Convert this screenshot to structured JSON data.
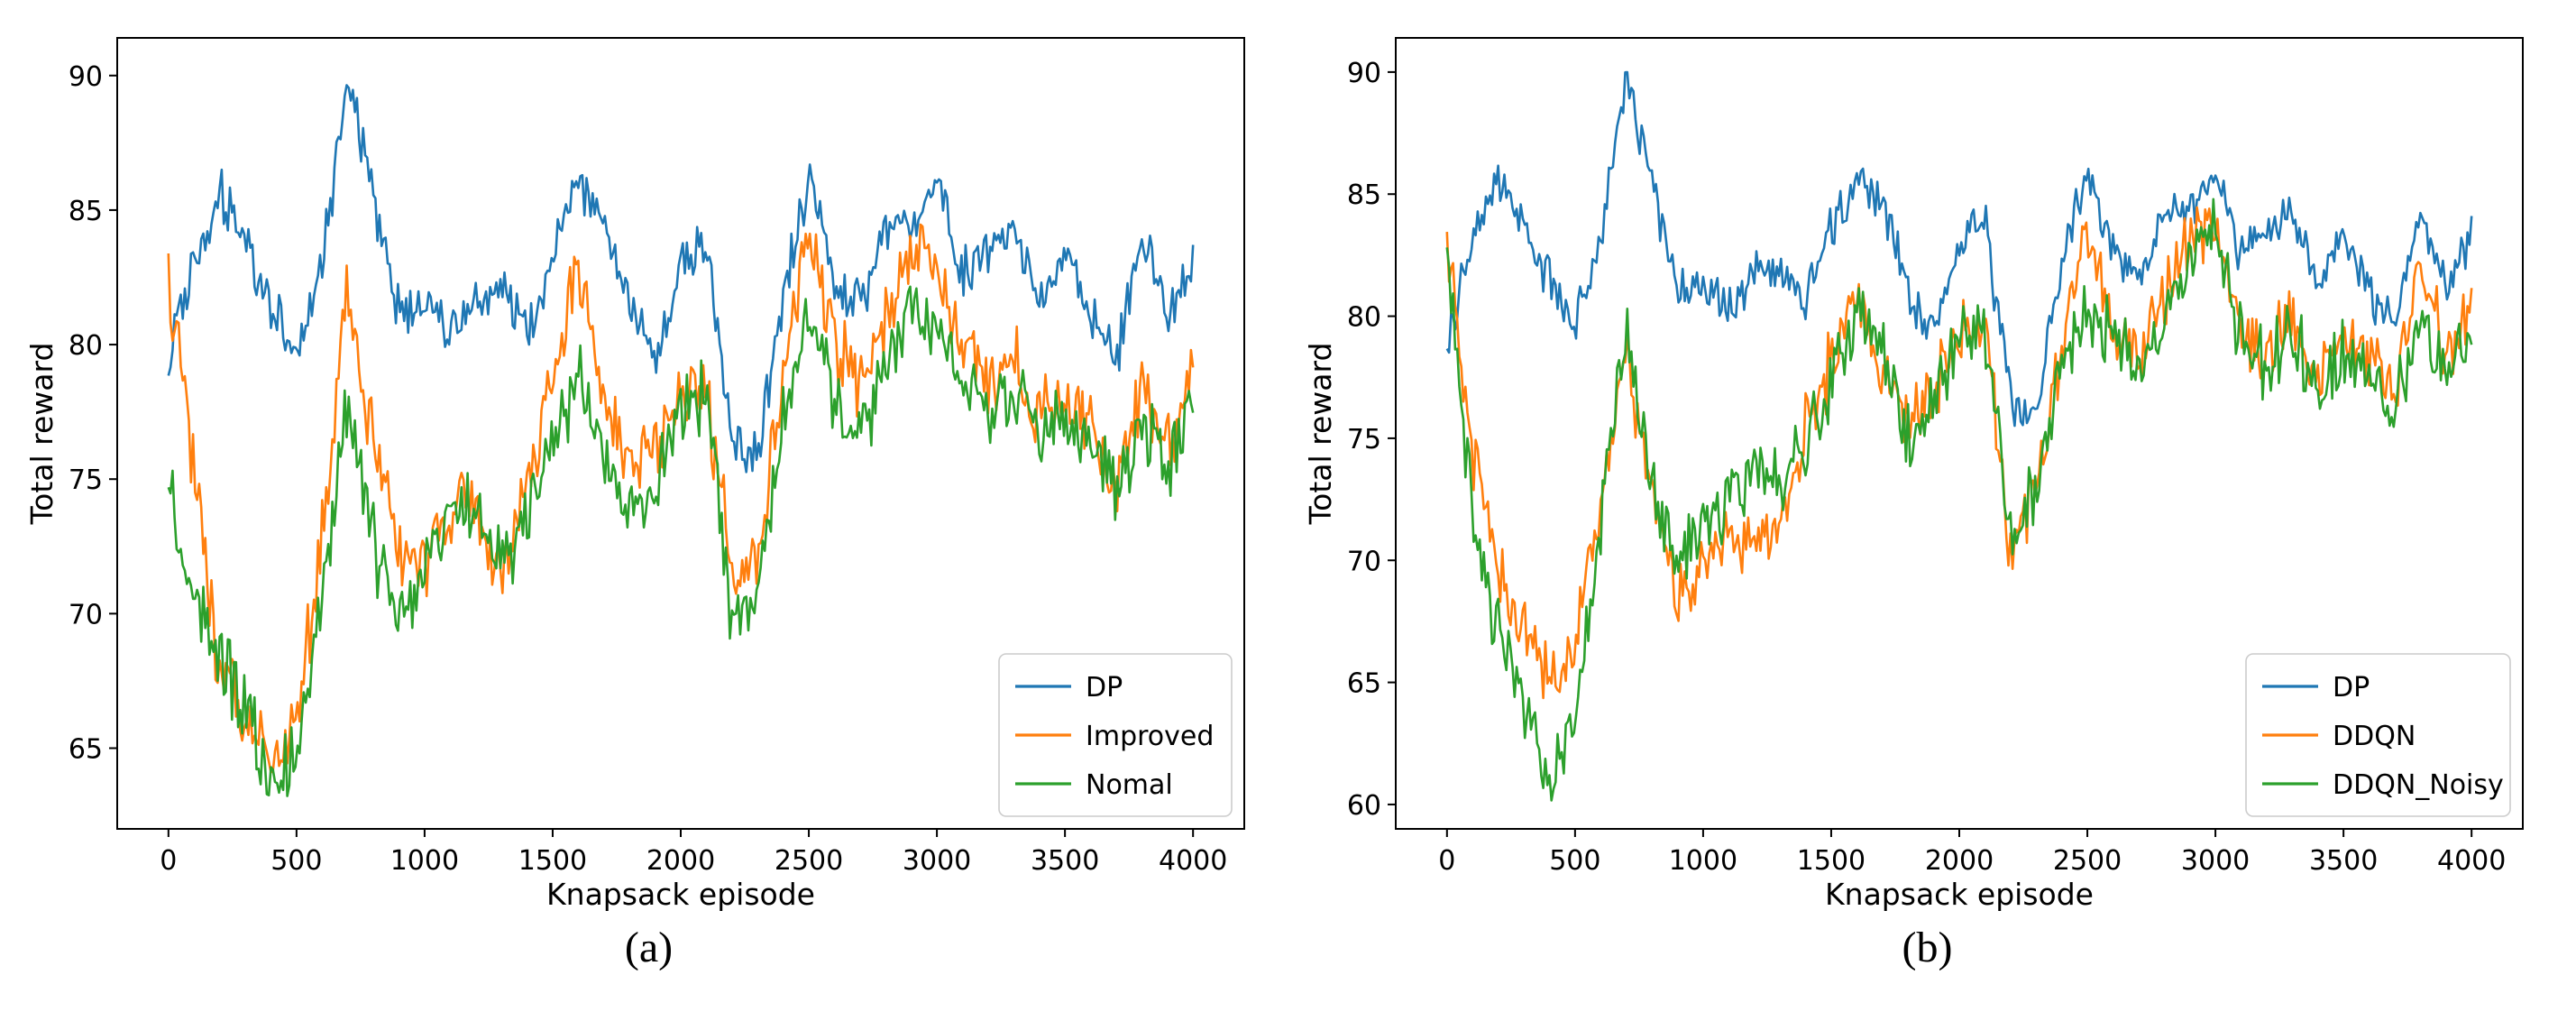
{
  "figure": {
    "background": "#ffffff",
    "frame_color": "#000000",
    "legend_border_color": "#cccccc"
  },
  "chart_data": [
    {
      "type": "line",
      "panel_label": "(a)",
      "xlabel": "Knapsack episode",
      "ylabel": "Total reward",
      "xlim": [
        -200,
        4200
      ],
      "ylim": [
        62.0,
        91.4
      ],
      "xticks": [
        0,
        500,
        1000,
        1500,
        2000,
        2500,
        3000,
        3500,
        4000
      ],
      "yticks": [
        65,
        70,
        75,
        80,
        85,
        90
      ],
      "grid": false,
      "legend_position": "lower right",
      "x_keypoints": [
        0,
        100,
        200,
        300,
        400,
        500,
        600,
        700,
        800,
        900,
        1000,
        1100,
        1200,
        1300,
        1400,
        1500,
        1600,
        1700,
        1800,
        1900,
        2000,
        2100,
        2200,
        2300,
        2400,
        2500,
        2600,
        2700,
        2800,
        2900,
        3000,
        3100,
        3200,
        3300,
        3400,
        3500,
        3600,
        3700,
        3800,
        3900,
        4000
      ],
      "series": [
        {
          "name": "DP",
          "color": "#1f77b4",
          "noise_amplitude": 0.9,
          "seed": 3,
          "values": [
            79.2,
            83.0,
            85.5,
            84.0,
            81.5,
            79.5,
            83.0,
            90.0,
            85.5,
            81.0,
            81.5,
            80.5,
            81.5,
            82.0,
            80.5,
            83.5,
            86.0,
            84.5,
            81.0,
            79.5,
            83.0,
            84.0,
            76.5,
            76.0,
            82.0,
            86.0,
            82.5,
            81.5,
            84.0,
            84.5,
            86.0,
            82.5,
            83.5,
            84.0,
            81.5,
            83.5,
            81.0,
            79.5,
            84.5,
            81.0,
            83.5
          ]
        },
        {
          "name": "Improved",
          "color": "#ff7f0e",
          "noise_amplitude": 1.3,
          "seed": 11,
          "values": [
            82.5,
            75.0,
            68.0,
            66.0,
            64.5,
            65.5,
            73.0,
            82.0,
            76.5,
            72.0,
            72.0,
            74.0,
            74.5,
            71.0,
            74.5,
            79.0,
            83.0,
            77.5,
            75.5,
            76.5,
            78.5,
            78.5,
            71.5,
            72.0,
            79.0,
            84.0,
            80.0,
            78.5,
            81.0,
            83.5,
            83.0,
            80.0,
            78.5,
            79.5,
            77.5,
            78.0,
            77.0,
            74.5,
            78.5,
            76.0,
            79.5
          ]
        },
        {
          "name": "Nomal",
          "color": "#2ca02c",
          "noise_amplitude": 1.3,
          "seed": 23,
          "values": [
            75.0,
            70.5,
            68.5,
            66.5,
            64.0,
            64.5,
            71.0,
            78.0,
            72.5,
            70.0,
            71.5,
            73.5,
            74.5,
            71.5,
            73.5,
            76.5,
            79.0,
            76.0,
            73.5,
            74.5,
            77.5,
            78.5,
            70.0,
            70.5,
            78.0,
            81.0,
            78.0,
            76.5,
            79.5,
            81.5,
            80.5,
            78.5,
            77.5,
            78.5,
            76.5,
            77.5,
            76.5,
            74.5,
            77.5,
            75.5,
            77.5
          ]
        }
      ]
    },
    {
      "type": "line",
      "panel_label": "(b)",
      "xlabel": "Knapsack episode",
      "ylabel": "Total reward",
      "xlim": [
        -200,
        4200
      ],
      "ylim": [
        59.0,
        91.4
      ],
      "xticks": [
        0,
        500,
        1000,
        1500,
        2000,
        2500,
        3000,
        3500,
        4000
      ],
      "yticks": [
        60,
        65,
        70,
        75,
        80,
        85,
        90
      ],
      "grid": false,
      "legend_position": "lower right",
      "x_keypoints": [
        0,
        100,
        200,
        300,
        400,
        500,
        600,
        700,
        800,
        900,
        1000,
        1100,
        1200,
        1300,
        1400,
        1500,
        1600,
        1700,
        1800,
        1900,
        2000,
        2100,
        2200,
        2300,
        2400,
        2500,
        2600,
        2700,
        2800,
        2900,
        3000,
        3100,
        3200,
        3300,
        3400,
        3500,
        3600,
        3700,
        3800,
        3900,
        4000
      ],
      "series": [
        {
          "name": "DP",
          "color": "#1f77b4",
          "noise_amplitude": 0.9,
          "seed": 5,
          "values": [
            79.2,
            83.0,
            85.5,
            84.0,
            81.5,
            79.5,
            83.0,
            90.0,
            85.5,
            81.0,
            81.5,
            80.5,
            81.5,
            82.0,
            80.5,
            83.5,
            86.0,
            84.5,
            81.0,
            79.5,
            83.0,
            84.0,
            76.5,
            76.0,
            82.0,
            86.0,
            82.5,
            81.5,
            84.0,
            84.5,
            86.0,
            82.5,
            83.5,
            84.0,
            81.5,
            83.5,
            81.0,
            79.5,
            84.5,
            81.0,
            83.5
          ]
        },
        {
          "name": "DDQN",
          "color": "#ff7f0e",
          "noise_amplitude": 1.3,
          "seed": 17,
          "values": [
            83.0,
            74.0,
            70.0,
            67.5,
            65.0,
            66.5,
            72.5,
            78.5,
            73.0,
            68.5,
            69.5,
            71.0,
            70.5,
            71.5,
            75.5,
            78.0,
            81.0,
            78.0,
            75.5,
            77.0,
            79.5,
            80.0,
            70.0,
            73.5,
            78.5,
            83.5,
            79.5,
            78.5,
            80.5,
            83.0,
            84.0,
            79.5,
            78.5,
            80.0,
            77.5,
            79.0,
            78.5,
            76.5,
            82.5,
            78.0,
            81.0
          ]
        },
        {
          "name": "DDQN_Noisy",
          "color": "#2ca02c",
          "noise_amplitude": 1.3,
          "seed": 29,
          "values": [
            82.5,
            72.0,
            67.0,
            64.5,
            61.0,
            63.5,
            71.5,
            80.0,
            73.0,
            70.0,
            71.5,
            72.5,
            73.5,
            73.0,
            74.5,
            77.5,
            80.5,
            78.5,
            75.0,
            76.5,
            79.5,
            79.5,
            71.0,
            73.0,
            78.0,
            80.5,
            79.0,
            78.0,
            80.0,
            82.5,
            83.5,
            79.0,
            78.0,
            79.5,
            76.5,
            78.5,
            77.5,
            76.0,
            80.5,
            77.5,
            79.5
          ]
        }
      ]
    }
  ]
}
